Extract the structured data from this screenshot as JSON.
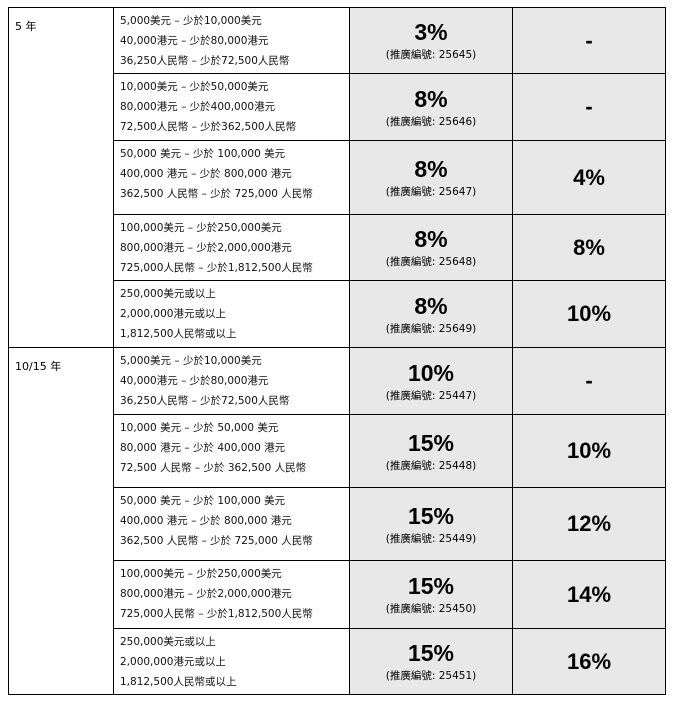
{
  "groups": [
    {
      "term": "5 年",
      "rows": [
        {
          "amounts": [
            "5,000美元 – 少於10,000美元",
            "40,000港元 – 少於80,000港元",
            "36,250人民幣 – 少於72,500人民幣"
          ],
          "rate": "3%",
          "code": "(推廣編號: 25645)",
          "bonus": "-"
        },
        {
          "amounts": [
            "10,000美元 – 少於50,000美元",
            "80,000港元 – 少於400,000港元",
            "72,500人民幣 – 少於362,500人民幣"
          ],
          "rate": "8%",
          "code": "(推廣編號: 25646)",
          "bonus": "-"
        },
        {
          "amounts": [
            "50,000 美元 – 少於 100,000 美元",
            "400,000 港元 – 少於 800,000 港元",
            "362,500 人民幣 – 少於 725,000 人民幣"
          ],
          "rate": "8%",
          "code": "(推廣編號: 25647)",
          "bonus": "4%"
        },
        {
          "amounts": [
            "100,000美元 – 少於250,000美元",
            "800,000港元 – 少於2,000,000港元",
            "725,000人民幣 – 少於1,812,500人民幣"
          ],
          "rate": "8%",
          "code": "(推廣編號: 25648)",
          "bonus": "8%"
        },
        {
          "amounts": [
            "250,000美元或以上",
            "2,000,000港元或以上",
            "1,812,500人民幣或以上"
          ],
          "rate": "8%",
          "code": "(推廣編號: 25649)",
          "bonus": "10%"
        }
      ]
    },
    {
      "term": "10/15 年",
      "rows": [
        {
          "amounts": [
            "5,000美元 – 少於10,000美元",
            "40,000港元 – 少於80,000港元",
            "36,250人民幣 – 少於72,500人民幣"
          ],
          "rate": "10%",
          "code": "(推廣編號: 25447)",
          "bonus": "-"
        },
        {
          "amounts": [
            "10,000 美元 – 少於 50,000 美元",
            "80,000 港元 – 少於 400,000 港元",
            "72,500 人民幣 – 少於 362,500 人民幣"
          ],
          "rate": "15%",
          "code": "(推廣編號: 25448)",
          "bonus": "10%"
        },
        {
          "amounts": [
            "50,000 美元 – 少於 100,000 美元",
            "400,000 港元 – 少於 800,000 港元",
            "362,500 人民幣 – 少於 725,000 人民幣"
          ],
          "rate": "15%",
          "code": "(推廣編號: 25449)",
          "bonus": "12%"
        },
        {
          "amounts": [
            "100,000美元 – 少於250,000美元",
            "800,000港元 – 少於2,000,000港元",
            "725,000人民幣 – 少於1,812,500人民幣"
          ],
          "rate": "15%",
          "code": "(推廣編號: 25450)",
          "bonus": "14%"
        },
        {
          "amounts": [
            "250,000美元或以上",
            "2,000,000港元或以上",
            "1,812,500人民幣或以上"
          ],
          "rate": "15%",
          "code": "(推廣編號: 25451)",
          "bonus": "16%"
        }
      ]
    }
  ]
}
